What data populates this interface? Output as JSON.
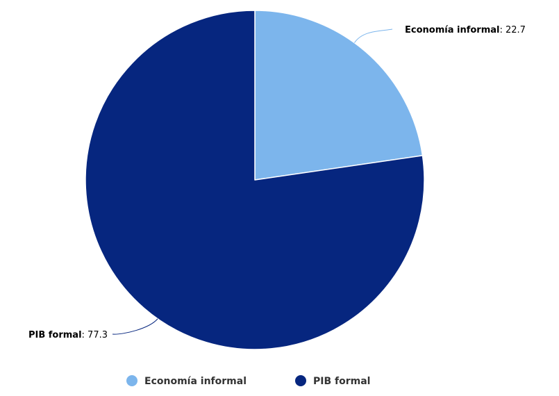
{
  "chart_data": {
    "type": "pie",
    "title": "",
    "series": [
      {
        "categories": [
          "Economía informal",
          "PIB formal"
        ],
        "values": [
          22.7,
          77.3
        ]
      }
    ],
    "colors": [
      "#7cb5ec",
      "#06267f"
    ],
    "start_angle_deg": 0,
    "data_labels": true,
    "legend": {
      "position": "bottom-center",
      "items": [
        "Economía informal",
        "PIB formal"
      ]
    }
  }
}
